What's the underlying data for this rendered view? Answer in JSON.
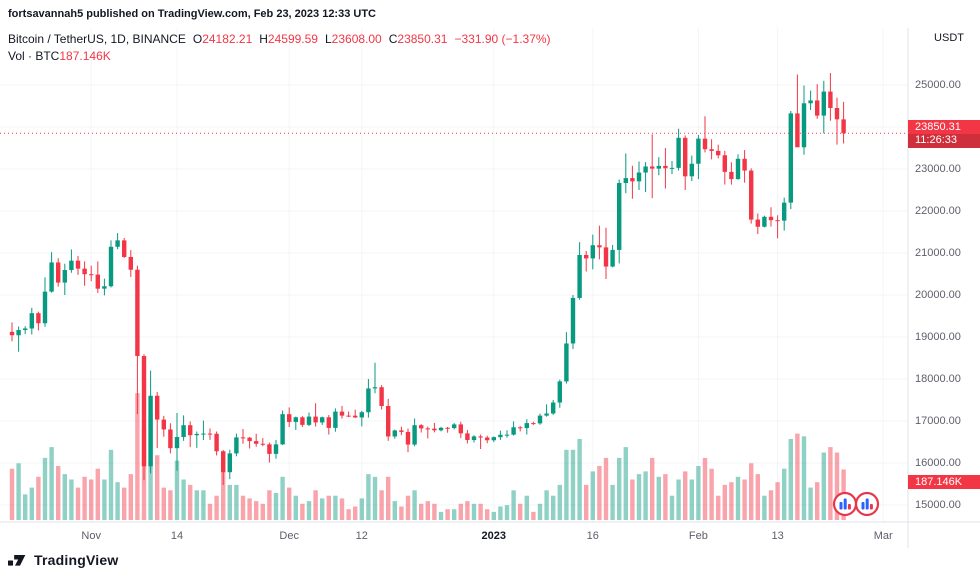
{
  "publish_bar": {
    "text": "fortsavannah5 published on TradingView.com, Feb 23, 2023 12:33 UTC"
  },
  "legend": {
    "symbol": "Bitcoin / TetherUS, 1D, BINANCE",
    "o_label": "O",
    "o": "24182.21",
    "h_label": "H",
    "h": "24599.59",
    "l_label": "L",
    "l": "23608.00",
    "c_label": "C",
    "c": "23850.31",
    "change": "−331.90 (−1.37%)",
    "vol_label": "Vol · BTC",
    "vol": "187.146K"
  },
  "price_scale": {
    "currency_label": "USDT"
  },
  "badges": {
    "price": "23850.31",
    "countdown": "11:26:33",
    "volume": "187.146K"
  },
  "footer": {
    "brand": "TradingView"
  },
  "colors": {
    "up": "#089981",
    "down": "#f23645",
    "vol_up": "rgba(8,153,129,0.45)",
    "vol_down": "rgba(242,54,69,0.45)",
    "badge": "#f23645",
    "grid": "#f3f4f8",
    "axis_border": "#e0e3eb"
  },
  "chart_data": {
    "type": "candlestick",
    "symbol": "Bitcoin / TetherUS",
    "exchange": "BINANCE",
    "interval": "1D",
    "quote_currency": "USDT",
    "title": "Bitcoin / TetherUS, 1D, BINANCE",
    "last_ohlc": {
      "open": 24182.21,
      "high": 24599.59,
      "low": 23608.0,
      "close": 23850.31
    },
    "change": -331.9,
    "change_pct": -1.37,
    "last_price": 23850.31,
    "last_volume_label": "187.146K",
    "first_candle_date": "2022-10-20",
    "ylim": [
      15000,
      25500
    ],
    "axis": {
      "price_ticks": [
        25000,
        24000,
        23000,
        22000,
        21000,
        20000,
        19000,
        18000,
        17000,
        16000,
        15000
      ],
      "time_ticks": [
        {
          "label": "Nov",
          "idx": 12,
          "bold": false
        },
        {
          "label": "14",
          "idx": 25,
          "bold": false
        },
        {
          "label": "Dec",
          "idx": 42,
          "bold": false
        },
        {
          "label": "12",
          "idx": 53,
          "bold": false
        },
        {
          "label": "2023",
          "idx": 73,
          "bold": true
        },
        {
          "label": "16",
          "idx": 88,
          "bold": false
        },
        {
          "label": "Feb",
          "idx": 104,
          "bold": false
        },
        {
          "label": "13",
          "idx": 116,
          "bold": false
        },
        {
          "label": "Mar",
          "idx": 132,
          "bold": false
        }
      ]
    },
    "candles_format": [
      "open",
      "high",
      "low",
      "close",
      "volume_kBTC"
    ],
    "candles": [
      [
        19123,
        19348,
        18900,
        19042,
        190
      ],
      [
        19042,
        19250,
        18650,
        19166,
        210
      ],
      [
        19166,
        19257,
        19070,
        19203,
        95
      ],
      [
        19203,
        19695,
        19060,
        19567,
        120
      ],
      [
        19567,
        19601,
        19157,
        19328,
        160
      ],
      [
        19328,
        20420,
        19240,
        20080,
        230
      ],
      [
        20080,
        21020,
        20055,
        20775,
        270
      ],
      [
        20775,
        20875,
        20200,
        20296,
        200
      ],
      [
        20296,
        20745,
        20000,
        20595,
        170
      ],
      [
        20595,
        21085,
        20530,
        20818,
        150
      ],
      [
        20818,
        20931,
        20480,
        20627,
        120
      ],
      [
        20627,
        20800,
        20220,
        20495,
        160
      ],
      [
        20495,
        20700,
        20330,
        20485,
        150
      ],
      [
        20485,
        20800,
        20050,
        20151,
        190
      ],
      [
        20151,
        20390,
        19990,
        20208,
        150
      ],
      [
        20208,
        21300,
        20180,
        21148,
        260
      ],
      [
        21148,
        21473,
        21090,
        21301,
        140
      ],
      [
        21301,
        21360,
        20880,
        20906,
        120
      ],
      [
        20906,
        21070,
        20430,
        20602,
        170
      ],
      [
        20602,
        20700,
        17166,
        18547,
        470
      ],
      [
        18547,
        18590,
        15588,
        15922,
        340
      ],
      [
        15922,
        18199,
        15754,
        17601,
        392
      ],
      [
        17601,
        17690,
        16355,
        17034,
        240
      ],
      [
        17034,
        17122,
        16625,
        16799,
        120
      ],
      [
        16799,
        16945,
        16229,
        16353,
        110
      ],
      [
        16353,
        17190,
        15815,
        16618,
        220
      ],
      [
        16618,
        17134,
        16527,
        16900,
        150
      ],
      [
        16900,
        16990,
        16378,
        16662,
        130
      ],
      [
        16662,
        16750,
        16360,
        16692,
        110
      ],
      [
        16692,
        17011,
        16546,
        16700,
        110
      ],
      [
        16700,
        16820,
        16550,
        16697,
        60
      ],
      [
        16697,
        16750,
        16180,
        16280,
        90
      ],
      [
        16280,
        16310,
        15476,
        15781,
        180
      ],
      [
        15781,
        16315,
        15617,
        16228,
        130
      ],
      [
        16228,
        16700,
        16160,
        16610,
        130
      ],
      [
        16610,
        16810,
        16458,
        16603,
        90
      ],
      [
        16603,
        16620,
        16345,
        16522,
        80
      ],
      [
        16522,
        16696,
        16386,
        16458,
        70
      ],
      [
        16458,
        16594,
        16400,
        16444,
        60
      ],
      [
        16444,
        16485,
        16012,
        16217,
        110
      ],
      [
        16217,
        16548,
        16100,
        16444,
        100
      ],
      [
        16444,
        17250,
        16428,
        17163,
        160
      ],
      [
        17163,
        17324,
        16855,
        16978,
        120
      ],
      [
        16978,
        17105,
        16787,
        17088,
        90
      ],
      [
        17088,
        17116,
        16858,
        16908,
        60
      ],
      [
        16908,
        17202,
        16878,
        17105,
        70
      ],
      [
        17105,
        17424,
        16867,
        16966,
        110
      ],
      [
        16966,
        17106,
        16906,
        17089,
        80
      ],
      [
        17089,
        17142,
        16678,
        16836,
        90
      ],
      [
        16836,
        17300,
        16744,
        17224,
        90
      ],
      [
        17224,
        17360,
        17058,
        17128,
        80
      ],
      [
        17128,
        17227,
        17092,
        17127,
        40
      ],
      [
        17127,
        17270,
        17071,
        17085,
        50
      ],
      [
        17085,
        17240,
        16871,
        17209,
        80
      ],
      [
        17209,
        18000,
        17080,
        17775,
        170
      ],
      [
        17775,
        18387,
        17660,
        17804,
        160
      ],
      [
        17804,
        17854,
        17275,
        17357,
        110
      ],
      [
        17357,
        17527,
        16527,
        16632,
        160
      ],
      [
        16632,
        16795,
        16579,
        16776,
        70
      ],
      [
        16776,
        16866,
        16663,
        16740,
        50
      ],
      [
        16740,
        16820,
        16256,
        16439,
        90
      ],
      [
        16439,
        17061,
        16398,
        16900,
        110
      ],
      [
        16900,
        16925,
        16725,
        16824,
        60
      ],
      [
        16824,
        16868,
        16585,
        16818,
        70
      ],
      [
        16818,
        16955,
        16730,
        16778,
        60
      ],
      [
        16778,
        16860,
        16754,
        16838,
        30
      ],
      [
        16838,
        16857,
        16721,
        16832,
        40
      ],
      [
        16832,
        16950,
        16800,
        16919,
        40
      ],
      [
        16919,
        16982,
        16592,
        16706,
        60
      ],
      [
        16706,
        16789,
        16465,
        16547,
        70
      ],
      [
        16547,
        16664,
        16488,
        16633,
        60
      ],
      [
        16633,
        16677,
        16333,
        16607,
        60
      ],
      [
        16607,
        16650,
        16470,
        16542,
        40
      ],
      [
        16542,
        16630,
        16499,
        16616,
        30
      ],
      [
        16616,
        16770,
        16550,
        16672,
        50
      ],
      [
        16672,
        16780,
        16605,
        16675,
        55
      ],
      [
        16675,
        16991,
        16652,
        16850,
        110
      ],
      [
        16850,
        16879,
        16753,
        16831,
        60
      ],
      [
        16831,
        17041,
        16679,
        16950,
        90
      ],
      [
        16950,
        16981,
        16908,
        16943,
        30
      ],
      [
        16943,
        17176,
        16911,
        17128,
        60
      ],
      [
        17128,
        17398,
        17104,
        17178,
        110
      ],
      [
        17178,
        17499,
        17146,
        17440,
        90
      ],
      [
        17440,
        17985,
        17315,
        17943,
        130
      ],
      [
        17943,
        19117,
        17892,
        18846,
        260
      ],
      [
        18846,
        20000,
        18714,
        19930,
        260
      ],
      [
        19930,
        21258,
        19888,
        20954,
        300
      ],
      [
        20954,
        21050,
        20560,
        20871,
        130
      ],
      [
        20871,
        21438,
        20611,
        21185,
        180
      ],
      [
        21185,
        21650,
        20850,
        21134,
        200
      ],
      [
        21134,
        21600,
        20380,
        20677,
        230
      ],
      [
        20677,
        21192,
        20659,
        21074,
        130
      ],
      [
        21074,
        22750,
        20751,
        22666,
        230
      ],
      [
        22666,
        23371,
        22422,
        22783,
        270
      ],
      [
        22783,
        23078,
        22292,
        22706,
        150
      ],
      [
        22706,
        23180,
        22500,
        22916,
        170
      ],
      [
        22916,
        23165,
        22450,
        23060,
        180
      ],
      [
        23060,
        23825,
        22305,
        23009,
        230
      ],
      [
        23009,
        23282,
        22850,
        23074,
        160
      ],
      [
        23074,
        23500,
        22534,
        23018,
        170
      ],
      [
        23018,
        23189,
        22879,
        23027,
        90
      ],
      [
        23027,
        23960,
        22965,
        23742,
        150
      ],
      [
        23742,
        23800,
        22500,
        22826,
        180
      ],
      [
        22826,
        23320,
        22714,
        23125,
        150
      ],
      [
        23125,
        23810,
        22760,
        23723,
        200
      ],
      [
        23723,
        24255,
        23395,
        23471,
        230
      ],
      [
        23471,
        23710,
        23230,
        23431,
        190
      ],
      [
        23431,
        23580,
        23255,
        23327,
        90
      ],
      [
        23327,
        23433,
        22630,
        22932,
        130
      ],
      [
        22932,
        23160,
        22628,
        22760,
        140
      ],
      [
        22760,
        23350,
        22745,
        23243,
        160
      ],
      [
        23243,
        23450,
        22675,
        22963,
        150
      ],
      [
        22963,
        23015,
        21700,
        21796,
        210
      ],
      [
        21796,
        21940,
        21451,
        21625,
        170
      ],
      [
        21625,
        21890,
        21608,
        21862,
        90
      ],
      [
        21862,
        22090,
        21630,
        21781,
        110
      ],
      [
        21781,
        21898,
        21351,
        21770,
        140
      ],
      [
        21770,
        22319,
        21532,
        22199,
        190
      ],
      [
        22199,
        24380,
        22045,
        24324,
        300
      ],
      [
        24324,
        25250,
        23545,
        23517,
        320
      ],
      [
        23517,
        24987,
        23339,
        24565,
        310
      ],
      [
        24565,
        24868,
        24406,
        24632,
        120
      ],
      [
        24632,
        25021,
        24194,
        24271,
        140
      ],
      [
        24271,
        25100,
        23850,
        24843,
        250
      ],
      [
        24843,
        25285,
        24150,
        24452,
        270
      ],
      [
        24452,
        24700,
        23580,
        24182,
        250
      ],
      [
        24182.21,
        24599.59,
        23608.0,
        23850.31,
        187.146
      ]
    ]
  }
}
